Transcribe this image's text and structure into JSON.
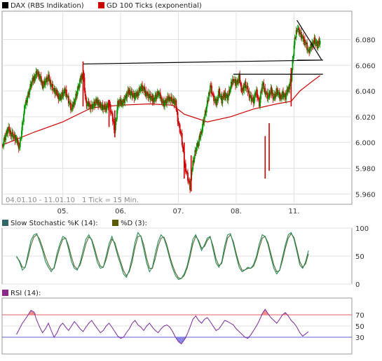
{
  "chart_data": [
    {
      "type": "candlestick",
      "legend": [
        {
          "label": "DAX (RBS Indikation)",
          "color": "#000000"
        },
        {
          "label": "GD 100 Ticks (exponential)",
          "color": "#cc0000"
        }
      ],
      "date_range_label": "04.01.10 - 11.01.10",
      "interval_label": "1 Tick = 15 Min.",
      "y_ticks": [
        "6.080",
        "6.060",
        "6.040",
        "6.020",
        "6.000",
        "5.980",
        "5.960"
      ],
      "y_tick_values": [
        6080,
        6060,
        6040,
        6020,
        6000,
        5980,
        5960
      ],
      "ylim": [
        5952,
        6102
      ],
      "x_ticks": [
        "05.",
        "06.",
        "07.",
        "08.",
        "11."
      ],
      "x_tick_positions": [
        0.5,
        1.5,
        2.5,
        3.5,
        4.5
      ],
      "xlim": [
        -0.55,
        5.5
      ],
      "up_color": "#009900",
      "down_color": "#cc0000",
      "close_path": [
        [
          -0.55,
          5998
        ],
        [
          -0.45,
          6010
        ],
        [
          -0.35,
          6005
        ],
        [
          -0.25,
          5997
        ],
        [
          -0.15,
          6030
        ],
        [
          -0.05,
          6045
        ],
        [
          0.05,
          6055
        ],
        [
          0.15,
          6045
        ],
        [
          0.25,
          6050
        ],
        [
          0.35,
          6040
        ],
        [
          0.45,
          6035
        ],
        [
          0.55,
          6040
        ],
        [
          0.65,
          6025
        ],
        [
          0.75,
          6040
        ],
        [
          0.85,
          6055
        ],
        [
          0.9,
          6030
        ],
        [
          1.0,
          6028
        ],
        [
          1.1,
          6032
        ],
        [
          1.2,
          6026
        ],
        [
          1.3,
          6030
        ],
        [
          1.35,
          6020
        ],
        [
          1.4,
          6010
        ],
        [
          1.45,
          6030
        ],
        [
          1.55,
          6032
        ],
        [
          1.65,
          6040
        ],
        [
          1.75,
          6035
        ],
        [
          1.85,
          6043
        ],
        [
          1.95,
          6038
        ],
        [
          2.05,
          6033
        ],
        [
          2.15,
          6038
        ],
        [
          2.25,
          6030
        ],
        [
          2.35,
          6035
        ],
        [
          2.45,
          6030
        ],
        [
          2.5,
          6015
        ],
        [
          2.55,
          6005
        ],
        [
          2.6,
          5985
        ],
        [
          2.65,
          5975
        ],
        [
          2.7,
          5965
        ],
        [
          2.75,
          5985
        ],
        [
          2.8,
          5995
        ],
        [
          2.85,
          6000
        ],
        [
          2.9,
          6010
        ],
        [
          2.95,
          6020
        ],
        [
          3.0,
          6030
        ],
        [
          3.05,
          6045
        ],
        [
          3.1,
          6035
        ],
        [
          3.15,
          6030
        ],
        [
          3.2,
          6040
        ],
        [
          3.25,
          6032
        ],
        [
          3.3,
          6038
        ],
        [
          3.35,
          6035
        ],
        [
          3.45,
          6050
        ],
        [
          3.5,
          6045
        ],
        [
          3.55,
          6050
        ],
        [
          3.6,
          6040
        ],
        [
          3.65,
          6045
        ],
        [
          3.7,
          6040
        ],
        [
          3.75,
          6035
        ],
        [
          3.8,
          6032
        ],
        [
          3.85,
          6040
        ],
        [
          3.9,
          6030
        ],
        [
          3.95,
          6045
        ],
        [
          4.0,
          6040
        ],
        [
          4.05,
          6035
        ],
        [
          4.1,
          6040
        ],
        [
          4.15,
          6035
        ],
        [
          4.2,
          6040
        ],
        [
          4.25,
          6035
        ],
        [
          4.3,
          6038
        ],
        [
          4.35,
          6035
        ],
        [
          4.4,
          6042
        ],
        [
          4.45,
          6050
        ],
        [
          4.5,
          6075
        ],
        [
          4.55,
          6090
        ],
        [
          4.6,
          6085
        ],
        [
          4.65,
          6080
        ],
        [
          4.7,
          6078
        ],
        [
          4.75,
          6070
        ],
        [
          4.8,
          6075
        ],
        [
          4.85,
          6080
        ],
        [
          4.9,
          6075
        ],
        [
          4.95,
          6078
        ]
      ],
      "moving_average": [
        [
          -0.55,
          5998
        ],
        [
          0.0,
          6008
        ],
        [
          0.5,
          6016
        ],
        [
          1.0,
          6027
        ],
        [
          1.5,
          6029
        ],
        [
          2.0,
          6030
        ],
        [
          2.4,
          6029
        ],
        [
          2.6,
          6022
        ],
        [
          3.0,
          6016
        ],
        [
          3.4,
          6020
        ],
        [
          3.8,
          6026
        ],
        [
          4.2,
          6030
        ],
        [
          4.45,
          6032
        ],
        [
          4.6,
          6040
        ],
        [
          4.8,
          6047
        ],
        [
          4.95,
          6052
        ]
      ],
      "spikes": [
        [
          0.85,
          6028,
          6063
        ],
        [
          1.3,
          6012,
          6033
        ],
        [
          1.4,
          6004,
          6025
        ],
        [
          2.6,
          5972,
          6000
        ],
        [
          2.72,
          5962,
          5990
        ],
        [
          4.0,
          5972,
          6005
        ],
        [
          4.07,
          5978,
          6015
        ],
        [
          4.45,
          6028,
          6058
        ]
      ],
      "trend_lines": [
        [
          [
            0.85,
            6061
          ],
          [
            5.0,
            6064
          ]
        ],
        [
          [
            3.45,
            6053
          ],
          [
            5.0,
            6053
          ]
        ],
        [
          [
            4.55,
            6095
          ],
          [
            4.98,
            6064
          ]
        ],
        [
          [
            4.55,
            6064
          ],
          [
            5.0,
            6064
          ]
        ]
      ]
    },
    {
      "type": "line",
      "legend": [
        {
          "label": "Slow Stochastic %K (14):",
          "color": "#336666"
        },
        {
          "label": "%D (3):",
          "color": "#5a5a00"
        }
      ],
      "y_ticks": [
        "100",
        "50",
        "0"
      ],
      "y_tick_values": [
        100,
        50,
        0
      ],
      "ylim": [
        0,
        100
      ],
      "xlim": [
        -0.55,
        5.5
      ],
      "series": [
        {
          "color": "#2a8a5a",
          "x_start": -0.3,
          "x_step": 0.05,
          "values": [
            50,
            40,
            25,
            30,
            55,
            78,
            88,
            90,
            75,
            60,
            40,
            30,
            22,
            30,
            55,
            72,
            85,
            82,
            62,
            40,
            28,
            25,
            38,
            60,
            80,
            88,
            78,
            58,
            38,
            28,
            30,
            50,
            72,
            85,
            70,
            50,
            35,
            18,
            12,
            25,
            48,
            75,
            92,
            85,
            62,
            38,
            22,
            30,
            55,
            76,
            88,
            82,
            65,
            45,
            28,
            15,
            8,
            10,
            18,
            32,
            55,
            80,
            88,
            75,
            60,
            70,
            82,
            85,
            62,
            38,
            30,
            40,
            68,
            88,
            90,
            72,
            50,
            30,
            22,
            25,
            30,
            28,
            35,
            50,
            72,
            88,
            85,
            70,
            48,
            28,
            18,
            25,
            48,
            70,
            88,
            92,
            80,
            58,
            34,
            28,
            40,
            60
          ]
        },
        {
          "color": "#556b2f",
          "x_start": -0.3,
          "x_step": 0.05,
          "values": [
            48,
            42,
            30,
            30,
            48,
            70,
            84,
            88,
            80,
            65,
            48,
            35,
            26,
            28,
            48,
            66,
            80,
            82,
            68,
            48,
            32,
            27,
            34,
            52,
            72,
            84,
            80,
            64,
            45,
            32,
            30,
            44,
            65,
            80,
            74,
            56,
            40,
            24,
            15,
            22,
            40,
            66,
            85,
            86,
            70,
            46,
            28,
            28,
            46,
            68,
            82,
            84,
            70,
            50,
            33,
            20,
            11,
            10,
            15,
            28,
            48,
            72,
            85,
            78,
            64,
            67,
            78,
            84,
            68,
            45,
            33,
            37,
            60,
            82,
            88,
            76,
            55,
            36,
            25,
            25,
            28,
            28,
            32,
            45,
            65,
            82,
            85,
            74,
            54,
            34,
            22,
            24,
            42,
            64,
            82,
            90,
            83,
            63,
            40,
            30,
            36,
            54
          ]
        }
      ]
    },
    {
      "type": "line",
      "legend": [
        {
          "label": "RSI (14):",
          "color": "#8b2a8b"
        }
      ],
      "y_ticks": [
        "70",
        "50",
        "30"
      ],
      "y_tick_values": [
        70,
        50,
        30
      ],
      "ylim": [
        0,
        100
      ],
      "xlim": [
        -0.55,
        5.5
      ],
      "overbought": 70,
      "oversold": 30,
      "overbought_color": "#e06060",
      "oversold_color": "#6060d0",
      "series": [
        {
          "color": "#7a2a9a",
          "x_start": -0.3,
          "x_step": 0.05,
          "values": [
            35,
            45,
            55,
            62,
            70,
            78,
            75,
            60,
            48,
            38,
            45,
            55,
            42,
            30,
            38,
            50,
            55,
            48,
            42,
            50,
            58,
            52,
            45,
            40,
            48,
            55,
            60,
            52,
            45,
            38,
            42,
            50,
            55,
            48,
            40,
            32,
            28,
            30,
            38,
            45,
            55,
            60,
            52,
            48,
            42,
            50,
            55,
            48,
            42,
            38,
            45,
            50,
            52,
            48,
            40,
            30,
            22,
            18,
            25,
            35,
            48,
            62,
            68,
            60,
            55,
            62,
            65,
            58,
            50,
            42,
            45,
            52,
            60,
            58,
            55,
            52,
            45,
            40,
            35,
            30,
            28,
            34,
            42,
            50,
            60,
            72,
            80,
            72,
            65,
            60,
            55,
            62,
            70,
            74,
            68,
            60,
            55,
            48,
            38,
            32,
            36,
            40
          ]
        }
      ]
    }
  ]
}
